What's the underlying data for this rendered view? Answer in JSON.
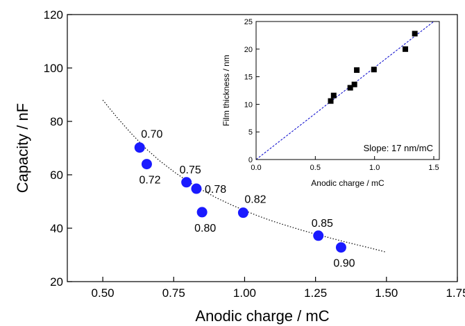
{
  "colors": {
    "main_marker": "#1a1aff",
    "inset_marker": "#000000",
    "fit_curve": "#000000",
    "inset_line": "#0000cc",
    "axis": "#000000"
  },
  "chart_data": [
    {
      "type": "scatter",
      "xlabel": "Anodic charge / mC",
      "ylabel": "Capacity / nF",
      "xlim": [
        0.375,
        1.75
      ],
      "ylim": [
        20,
        120
      ],
      "xticks": [
        0.5,
        0.75,
        1.0,
        1.25,
        1.5,
        1.75
      ],
      "xtick_labels": [
        "0.50",
        "0.75",
        "1.00",
        "1.25",
        "1.50",
        "1.75"
      ],
      "yticks": [
        20,
        40,
        60,
        80,
        100,
        120
      ],
      "ytick_labels": [
        "20",
        "40",
        "60",
        "80",
        "100",
        "120"
      ],
      "grid": false,
      "marker": "circle",
      "points": [
        {
          "x": 0.63,
          "y": 70.2,
          "label": "0.70",
          "label_pos": "upper-right"
        },
        {
          "x": 0.655,
          "y": 64.0,
          "label": "0.72",
          "label_pos": "below"
        },
        {
          "x": 0.795,
          "y": 57.2,
          "label": "0.75",
          "label_pos": "above"
        },
        {
          "x": 0.83,
          "y": 54.8,
          "label": "0.78",
          "label_pos": "right"
        },
        {
          "x": 0.85,
          "y": 46.0,
          "label": "0.80",
          "label_pos": "below"
        },
        {
          "x": 0.995,
          "y": 45.8,
          "label": "0.82",
          "label_pos": "upper-right"
        },
        {
          "x": 1.26,
          "y": 37.2,
          "label": "0.85",
          "label_pos": "above"
        },
        {
          "x": 1.34,
          "y": 32.8,
          "label": "0.90",
          "label_pos": "below"
        }
      ],
      "fit_curve": {
        "style": "dotted",
        "x": [
          0.5,
          0.55,
          0.6,
          0.65,
          0.7,
          0.75,
          0.8,
          0.85,
          0.9,
          0.95,
          1.0,
          1.05,
          1.1,
          1.15,
          1.2,
          1.25,
          1.3,
          1.35,
          1.4,
          1.45,
          1.5
        ],
        "y": [
          88.0,
          81.5,
          75.5,
          70.0,
          65.3,
          61.2,
          57.5,
          54.3,
          51.4,
          48.9,
          46.6,
          44.5,
          42.6,
          40.9,
          39.3,
          37.8,
          36.4,
          35.0,
          33.7,
          32.4,
          31.0
        ]
      }
    },
    {
      "type": "scatter",
      "position": "inset-top-right",
      "xlabel": "Anodic charge / mC",
      "ylabel": "Film thickness / nm",
      "xlim": [
        0.0,
        1.5
      ],
      "ylim": [
        0,
        25
      ],
      "xticks": [
        0.0,
        0.5,
        1.0,
        1.5
      ],
      "xtick_labels": [
        "0.0",
        "0.5",
        "1.0",
        "1.5"
      ],
      "yticks": [
        0,
        5,
        10,
        15,
        20,
        25
      ],
      "ytick_labels": [
        "0",
        "5",
        "10",
        "15",
        "20",
        "25"
      ],
      "grid": false,
      "marker": "square",
      "points": [
        {
          "x": 0.63,
          "y": 10.6
        },
        {
          "x": 0.655,
          "y": 11.6
        },
        {
          "x": 0.795,
          "y": 13.0
        },
        {
          "x": 0.83,
          "y": 13.6
        },
        {
          "x": 0.85,
          "y": 16.2
        },
        {
          "x": 0.995,
          "y": 16.3
        },
        {
          "x": 1.26,
          "y": 20.0
        },
        {
          "x": 1.34,
          "y": 22.8
        }
      ],
      "fit_line": {
        "style": "dashed",
        "x": [
          0.0,
          1.5
        ],
        "y": [
          0.0,
          25.5
        ]
      },
      "annotation": "Slope: 17 nm/mC",
      "annotation_position": "bottom-right"
    }
  ]
}
